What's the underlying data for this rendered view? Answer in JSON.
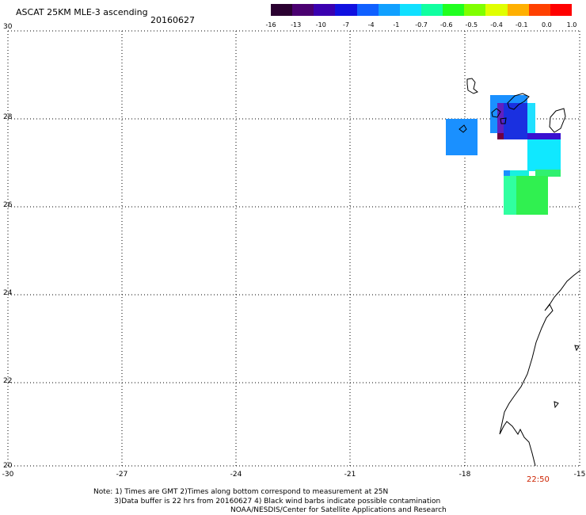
{
  "header": {
    "title": "ASCAT 25KM MLE-3 ascending",
    "date": "20160627"
  },
  "colorbar": {
    "labels": [
      "-16",
      "-13",
      "-10",
      "-7",
      "-4",
      "-1",
      "-0.7",
      "-0.6",
      "-0.5",
      "-0.4",
      "-0.1",
      "0.0",
      "1.0"
    ],
    "colors": [
      "#2a0030",
      "#4a0070",
      "#3a00b0",
      "#1010e0",
      "#1060ff",
      "#10a0ff",
      "#10e0ff",
      "#10ffa0",
      "#20ff20",
      "#80ff00",
      "#e0ff00",
      "#ffb000",
      "#ff4000",
      "#ff0000"
    ]
  },
  "axes": {
    "x_ticks": [
      "-30",
      "-27",
      "-24",
      "-21",
      "-18",
      "-15"
    ],
    "y_ticks": [
      "30",
      "28",
      "26",
      "24",
      "22",
      "20"
    ]
  },
  "time_label": "22:50",
  "notes": {
    "line1": "Note: 1) Times are GMT 2)Times along bottom correspond to measurement at 25N",
    "line2": "3)Data buffer is 22 hrs from 20160627 4) Black wind barbs indicate possible contamination",
    "line3": "NOAA/NESDIS/Center for Satellite Applications and Research"
  }
}
